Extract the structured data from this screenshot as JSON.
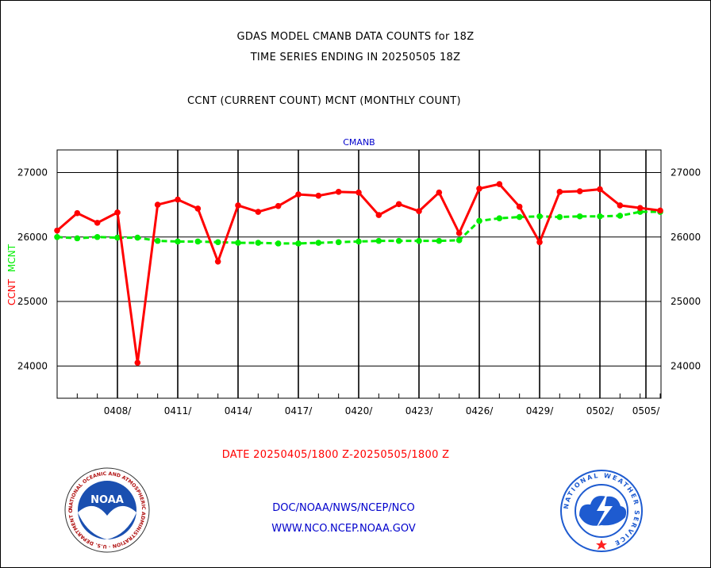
{
  "header": {
    "title": "GDAS MODEL CMANB DATA COUNTS for 18Z",
    "subtitle": "TIME SERIES ENDING IN 20250505 18Z",
    "legend_line": "CCNT (CURRENT COUNT) MCNT (MONTHLY COUNT)"
  },
  "footer": {
    "date_range": "DATE 20250405/1800 Z-20250505/1800 Z",
    "link1": "DOC/NOAA/NWS/NCEP/NCO",
    "link2": "WWW.NCO.NCEP.NOAA.GOV",
    "logo_left": "NOAA",
    "logo_left_ring": "NATIONAL OCEANIC AND ATMOSPHERIC ADMINISTRATION · U.S. DEPARTMENT OF COMMERCE",
    "logo_right_ring": "NATIONAL WEATHER SERVICE"
  },
  "colors": {
    "ccnt": "#ff0000",
    "mcnt": "#00ee00",
    "panel_label": "#0000cc",
    "noaa_blue": "#1a4fb0",
    "nws_blue": "#1e5bd0"
  },
  "chart_data": {
    "type": "line",
    "panel_label": "CMANB",
    "ylabel_ccnt": "CCNT",
    "ylabel_mcnt": "MCNT",
    "ylim": [
      23500,
      27350
    ],
    "yticks": [
      24000,
      25000,
      26000,
      27000
    ],
    "x_days": [
      0,
      1,
      2,
      3,
      4,
      5,
      6,
      7,
      8,
      9,
      10,
      11,
      12,
      13,
      14,
      15,
      16,
      17,
      18,
      19,
      20,
      21,
      22,
      23,
      24,
      25,
      26,
      27,
      28,
      29,
      30
    ],
    "x_dates": [
      "0405",
      "0406",
      "0407",
      "0408",
      "0409",
      "0410",
      "0411",
      "0412",
      "0413",
      "0414",
      "0415",
      "0416",
      "0417",
      "0418",
      "0419",
      "0420",
      "0421",
      "0422",
      "0423",
      "0424",
      "0425",
      "0426",
      "0427",
      "0428",
      "0429",
      "0430",
      "0501",
      "0502",
      "0503",
      "0504",
      "0505"
    ],
    "xticks": [
      {
        "day": 3,
        "label": "0408/"
      },
      {
        "day": 6,
        "label": "0411/"
      },
      {
        "day": 9,
        "label": "0414/"
      },
      {
        "day": 12,
        "label": "0417/"
      },
      {
        "day": 15,
        "label": "0420/"
      },
      {
        "day": 18,
        "label": "0423/"
      },
      {
        "day": 21,
        "label": "0426/"
      },
      {
        "day": 24,
        "label": "0429/"
      },
      {
        "day": 27,
        "label": "0502/"
      },
      {
        "day": 30,
        "label": "0505/"
      }
    ],
    "series": [
      {
        "name": "CCNT",
        "style": "solid",
        "values": [
          26100,
          26370,
          26220,
          26380,
          24050,
          26500,
          26580,
          26440,
          25620,
          26490,
          26390,
          26480,
          26660,
          26640,
          26700,
          26690,
          26340,
          26510,
          26400,
          26690,
          26060,
          26750,
          26820,
          26470,
          25920,
          26700,
          26710,
          26740,
          26490,
          26450,
          26410
        ]
      },
      {
        "name": "MCNT",
        "style": "dashed",
        "values": [
          26000,
          25980,
          26000,
          25990,
          25990,
          25940,
          25930,
          25930,
          25920,
          25910,
          25910,
          25900,
          25900,
          25910,
          25920,
          25930,
          25940,
          25940,
          25940,
          25940,
          25950,
          26250,
          26290,
          26310,
          26320,
          26310,
          26320,
          26320,
          26330,
          26390,
          26390
        ]
      }
    ]
  }
}
